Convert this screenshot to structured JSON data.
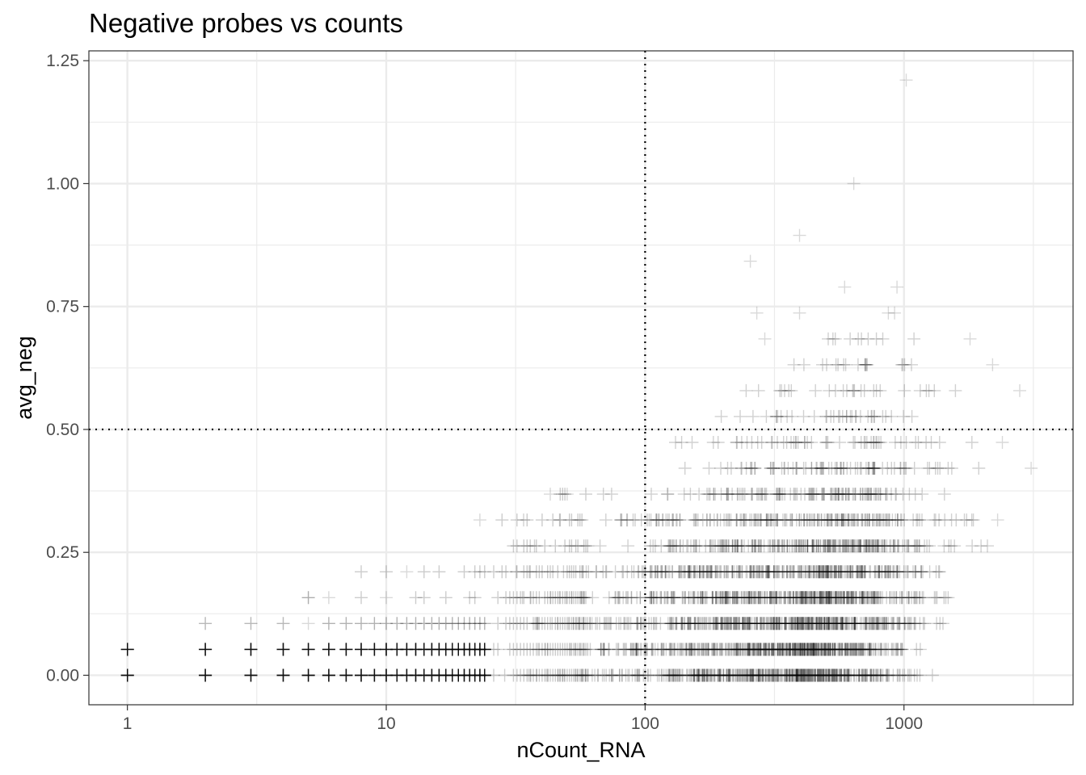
{
  "chart_data": {
    "type": "scatter",
    "title": "Negative probes vs counts",
    "xlabel": "nCount_RNA",
    "ylabel": "avg_neg",
    "x_scale": "log10",
    "xlim": [
      0.71,
      4500
    ],
    "ylim": [
      -0.06,
      1.27
    ],
    "x_ticks": [
      {
        "value": 1,
        "label": "1"
      },
      {
        "value": 10,
        "label": "10"
      },
      {
        "value": 100,
        "label": "100"
      },
      {
        "value": 1000,
        "label": "1000"
      }
    ],
    "y_ticks": [
      {
        "value": 0,
        "label": "0.00"
      },
      {
        "value": 0.25,
        "label": "0.25"
      },
      {
        "value": 0.5,
        "label": "0.50"
      },
      {
        "value": 0.75,
        "label": "0.75"
      },
      {
        "value": 1.0,
        "label": "1.00"
      },
      {
        "value": 1.25,
        "label": "1.25"
      }
    ],
    "grid": true,
    "reference_lines": [
      {
        "axis": "x",
        "value": 100,
        "style": "dotted"
      },
      {
        "axis": "y",
        "value": 0.5,
        "style": "dotted"
      }
    ],
    "marker": "plus",
    "marker_color": "#000000",
    "marker_alpha": 0.1,
    "rows": [
      {
        "y": 0.0,
        "xmin": 1,
        "xmax": 1500,
        "peak": 350,
        "density": 1.0
      },
      {
        "y": 0.0526,
        "xmin": 1,
        "xmax": 1400,
        "peak": 350,
        "density": 1.0
      },
      {
        "y": 0.1053,
        "xmin": 2,
        "xmax": 1800,
        "peak": 380,
        "density": 0.95
      },
      {
        "y": 0.1579,
        "xmin": 5,
        "xmax": 2000,
        "peak": 400,
        "density": 0.85
      },
      {
        "y": 0.2105,
        "xmin": 8,
        "xmax": 2100,
        "peak": 420,
        "density": 0.7
      },
      {
        "y": 0.2632,
        "xmin": 30,
        "xmax": 2300,
        "peak": 450,
        "density": 0.55
      },
      {
        "y": 0.3158,
        "xmin": 23,
        "xmax": 2500,
        "peak": 470,
        "density": 0.4
      },
      {
        "y": 0.3684,
        "xmin": 45,
        "xmax": 1900,
        "peak": 480,
        "density": 0.25
      },
      {
        "y": 0.4211,
        "xmin": 100,
        "xmax": 3100,
        "peak": 500,
        "density": 0.16
      },
      {
        "y": 0.4737,
        "xmin": 80,
        "xmax": 2400,
        "peak": 520,
        "density": 0.1
      },
      {
        "y": 0.5263,
        "xmin": 120,
        "xmax": 1900,
        "peak": 550,
        "density": 0.07
      },
      {
        "y": 0.5789,
        "xmin": 160,
        "xmax": 2800,
        "peak": 560,
        "density": 0.05
      },
      {
        "y": 0.6316,
        "xmin": 170,
        "xmax": 2200,
        "peak": 600,
        "density": 0.035
      },
      {
        "y": 0.6842,
        "xmin": 280,
        "xmax": 1900,
        "peak": 600,
        "density": 0.02
      }
    ],
    "sparse_points": [
      {
        "x": 2,
        "y": 0.1053
      },
      {
        "x": 3,
        "y": 0.1053
      },
      {
        "x": 4,
        "y": 0.1053
      },
      {
        "x": 5,
        "y": 0.1579
      },
      {
        "x": 6,
        "y": 0.1579
      },
      {
        "x": 10,
        "y": 0.1579
      },
      {
        "x": 12,
        "y": 0.2105
      },
      {
        "x": 23,
        "y": 0.3158
      },
      {
        "x": 43,
        "y": 0.3684
      },
      {
        "x": 50,
        "y": 0.3684
      },
      {
        "x": 255,
        "y": 0.8421
      },
      {
        "x": 270,
        "y": 0.7368
      },
      {
        "x": 290,
        "y": 0.6842
      },
      {
        "x": 395,
        "y": 0.8947
      },
      {
        "x": 395,
        "y": 0.7368
      },
      {
        "x": 590,
        "y": 0.7895
      },
      {
        "x": 640,
        "y": 1.0
      },
      {
        "x": 870,
        "y": 0.7368
      },
      {
        "x": 920,
        "y": 0.7368
      },
      {
        "x": 940,
        "y": 0.7895
      },
      {
        "x": 1020,
        "y": 1.2105
      },
      {
        "x": 3100,
        "y": 0.4211
      },
      {
        "x": 2800,
        "y": 0.5789
      },
      {
        "x": 1800,
        "y": 0.6842
      },
      {
        "x": 2200,
        "y": 0.6316
      },
      {
        "x": 2400,
        "y": 0.4737
      },
      {
        "x": 2300,
        "y": 0.3158
      }
    ]
  }
}
